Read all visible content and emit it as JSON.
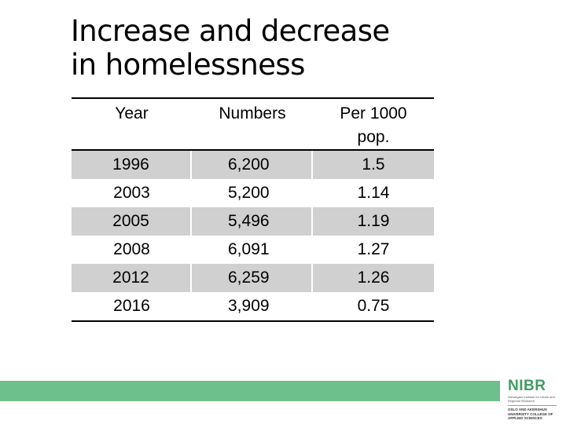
{
  "title": {
    "line1": "Increase and decrease",
    "line2": "in homelessness"
  },
  "table": {
    "headers": {
      "year": "Year",
      "numbers": "Numbers",
      "per1000_line1": "Per 1000",
      "per1000_line2": "pop."
    },
    "rows": [
      {
        "year": "1996",
        "numbers": "6,200",
        "per1000": "1.5"
      },
      {
        "year": "2003",
        "numbers": "5,200",
        "per1000": "1.14"
      },
      {
        "year": "2005",
        "numbers": "5,496",
        "per1000": "1.19"
      },
      {
        "year": "2008",
        "numbers": "6,091",
        "per1000": "1.27"
      },
      {
        "year": "2012",
        "numbers": "6,259",
        "per1000": "1.26"
      },
      {
        "year": "2016",
        "numbers": "3,909",
        "per1000": "0.75"
      }
    ]
  },
  "logo": {
    "name": "NIBR",
    "subtitle": "Norwegian Institute for Urban and Regional Research",
    "college": "OSLO AND AKERSHUS UNIVERSITY COLLEGE OF APPLIED SCIENCES"
  },
  "colors": {
    "accent_green": "#6dbf8b",
    "logo_green": "#3f9d61",
    "row_shade": "#d0d0d0"
  }
}
